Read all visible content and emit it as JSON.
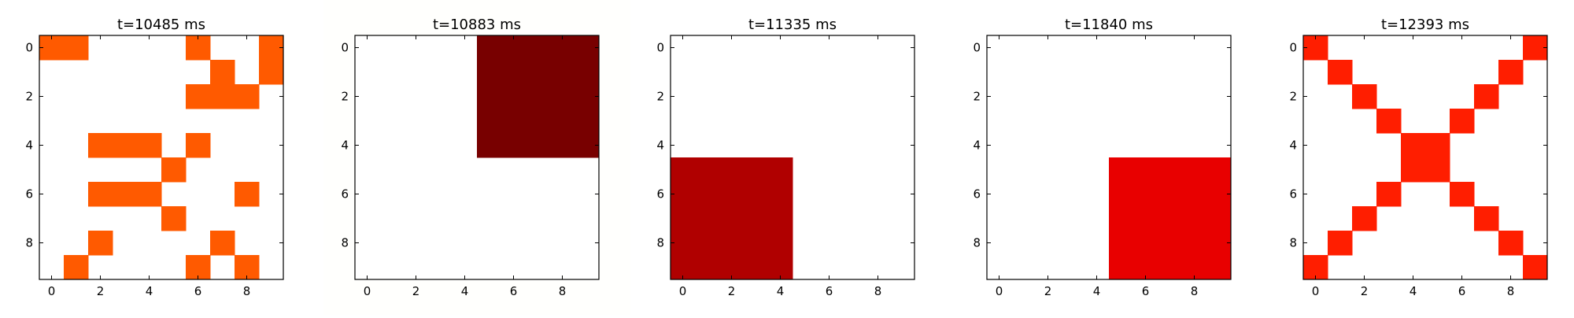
{
  "chart_data": [
    {
      "type": "heatmap",
      "title": "t=10485 ms",
      "color": "#ff5a00",
      "background": "#ffffff",
      "xlim": [
        -0.5,
        9.5
      ],
      "ylim": [
        9.5,
        -0.5
      ],
      "xticks": [
        "0",
        "2",
        "4",
        "6",
        "8"
      ],
      "yticks": [
        "0",
        "2",
        "4",
        "6",
        "8"
      ],
      "grid": false,
      "cells": [
        [
          1,
          1,
          0,
          0,
          0,
          0,
          1,
          0,
          0,
          1
        ],
        [
          0,
          0,
          0,
          0,
          0,
          0,
          0,
          1,
          0,
          1
        ],
        [
          0,
          0,
          0,
          0,
          0,
          0,
          1,
          1,
          1,
          0
        ],
        [
          0,
          0,
          0,
          0,
          0,
          0,
          0,
          0,
          0,
          0
        ],
        [
          0,
          0,
          1,
          1,
          1,
          0,
          1,
          0,
          0,
          0
        ],
        [
          0,
          0,
          0,
          0,
          0,
          1,
          0,
          0,
          0,
          0
        ],
        [
          0,
          0,
          1,
          1,
          1,
          0,
          0,
          0,
          1,
          0
        ],
        [
          0,
          0,
          0,
          0,
          0,
          1,
          0,
          0,
          0,
          0
        ],
        [
          0,
          0,
          1,
          0,
          0,
          0,
          0,
          1,
          0,
          0
        ],
        [
          0,
          1,
          0,
          0,
          0,
          0,
          1,
          0,
          1,
          0
        ]
      ]
    },
    {
      "type": "heatmap",
      "title": "t=10883 ms",
      "color": "#780000",
      "background": "#fffffd",
      "xlim": [
        -0.5,
        9.5
      ],
      "ylim": [
        9.5,
        -0.5
      ],
      "xticks": [
        "0",
        "2",
        "4",
        "6",
        "8"
      ],
      "yticks": [
        "0",
        "2",
        "4",
        "6",
        "8"
      ],
      "grid": false,
      "cells": [
        [
          0,
          0,
          0,
          0,
          0,
          1,
          1,
          1,
          1,
          1
        ],
        [
          0,
          0,
          0,
          0,
          0,
          1,
          1,
          1,
          1,
          1
        ],
        [
          0,
          0,
          0,
          0,
          0,
          1,
          1,
          1,
          1,
          1
        ],
        [
          0,
          0,
          0,
          0,
          0,
          1,
          1,
          1,
          1,
          1
        ],
        [
          0,
          0,
          0,
          0,
          0,
          1,
          1,
          1,
          1,
          1
        ],
        [
          0,
          0,
          0,
          0,
          0,
          0,
          0,
          0,
          0,
          0
        ],
        [
          0,
          0,
          0,
          0,
          0,
          0,
          0,
          0,
          0,
          0
        ],
        [
          0,
          0,
          0,
          0,
          0,
          0,
          0,
          0,
          0,
          0
        ],
        [
          0,
          0,
          0,
          0,
          0,
          0,
          0,
          0,
          0,
          0
        ],
        [
          0,
          0,
          0,
          0,
          0,
          0,
          0,
          0,
          0,
          0
        ]
      ]
    },
    {
      "type": "heatmap",
      "title": "t=11335 ms",
      "color": "#b00000",
      "background": "#ffffff",
      "xlim": [
        -0.5,
        9.5
      ],
      "ylim": [
        9.5,
        -0.5
      ],
      "xticks": [
        "0",
        "2",
        "4",
        "6",
        "8"
      ],
      "yticks": [
        "0",
        "2",
        "4",
        "6",
        "8"
      ],
      "grid": false,
      "cells": [
        [
          0,
          0,
          0,
          0,
          0,
          0,
          0,
          0,
          0,
          0
        ],
        [
          0,
          0,
          0,
          0,
          0,
          0,
          0,
          0,
          0,
          0
        ],
        [
          0,
          0,
          0,
          0,
          0,
          0,
          0,
          0,
          0,
          0
        ],
        [
          0,
          0,
          0,
          0,
          0,
          0,
          0,
          0,
          0,
          0
        ],
        [
          0,
          0,
          0,
          0,
          0,
          0,
          0,
          0,
          0,
          0
        ],
        [
          1,
          1,
          1,
          1,
          1,
          0,
          0,
          0,
          0,
          0
        ],
        [
          1,
          1,
          1,
          1,
          1,
          0,
          0,
          0,
          0,
          0
        ],
        [
          1,
          1,
          1,
          1,
          1,
          0,
          0,
          0,
          0,
          0
        ],
        [
          1,
          1,
          1,
          1,
          1,
          0,
          0,
          0,
          0,
          0
        ],
        [
          1,
          1,
          1,
          1,
          1,
          0,
          0,
          0,
          0,
          0
        ]
      ]
    },
    {
      "type": "heatmap",
      "title": "t=11840 ms",
      "color": "#e80000",
      "background": "#ffffff",
      "xlim": [
        -0.5,
        9.5
      ],
      "ylim": [
        9.5,
        -0.5
      ],
      "xticks": [
        "0",
        "2",
        "4",
        "6",
        "8"
      ],
      "yticks": [
        "0",
        "2",
        "4",
        "6",
        "8"
      ],
      "grid": false,
      "cells": [
        [
          0,
          0,
          0,
          0,
          0,
          0,
          0,
          0,
          0,
          0
        ],
        [
          0,
          0,
          0,
          0,
          0,
          0,
          0,
          0,
          0,
          0
        ],
        [
          0,
          0,
          0,
          0,
          0,
          0,
          0,
          0,
          0,
          0
        ],
        [
          0,
          0,
          0,
          0,
          0,
          0,
          0,
          0,
          0,
          0
        ],
        [
          0,
          0,
          0,
          0,
          0,
          0,
          0,
          0,
          0,
          0
        ],
        [
          0,
          0,
          0,
          0,
          0,
          1,
          1,
          1,
          1,
          1
        ],
        [
          0,
          0,
          0,
          0,
          0,
          1,
          1,
          1,
          1,
          1
        ],
        [
          0,
          0,
          0,
          0,
          0,
          1,
          1,
          1,
          1,
          1
        ],
        [
          0,
          0,
          0,
          0,
          0,
          1,
          1,
          1,
          1,
          1
        ],
        [
          0,
          0,
          0,
          0,
          0,
          1,
          1,
          1,
          1,
          1
        ]
      ]
    },
    {
      "type": "heatmap",
      "title": "t=12393 ms",
      "color": "#ff1e00",
      "background": "#ffffff",
      "xlim": [
        -0.5,
        9.5
      ],
      "ylim": [
        9.5,
        -0.5
      ],
      "xticks": [
        "0",
        "2",
        "4",
        "6",
        "8"
      ],
      "yticks": [
        "0",
        "2",
        "4",
        "6",
        "8"
      ],
      "grid": false,
      "cells": [
        [
          1,
          0,
          0,
          0,
          0,
          0,
          0,
          0,
          0,
          1
        ],
        [
          0,
          1,
          0,
          0,
          0,
          0,
          0,
          0,
          1,
          0
        ],
        [
          0,
          0,
          1,
          0,
          0,
          0,
          0,
          1,
          0,
          0
        ],
        [
          0,
          0,
          0,
          1,
          0,
          0,
          1,
          0,
          0,
          0
        ],
        [
          0,
          0,
          0,
          0,
          1,
          1,
          0,
          0,
          0,
          0
        ],
        [
          0,
          0,
          0,
          0,
          1,
          1,
          0,
          0,
          0,
          0
        ],
        [
          0,
          0,
          0,
          1,
          0,
          0,
          1,
          0,
          0,
          0
        ],
        [
          0,
          0,
          1,
          0,
          0,
          0,
          0,
          1,
          0,
          0
        ],
        [
          0,
          1,
          0,
          0,
          0,
          0,
          0,
          0,
          1,
          0
        ],
        [
          1,
          0,
          0,
          0,
          0,
          0,
          0,
          0,
          0,
          1
        ]
      ]
    }
  ]
}
